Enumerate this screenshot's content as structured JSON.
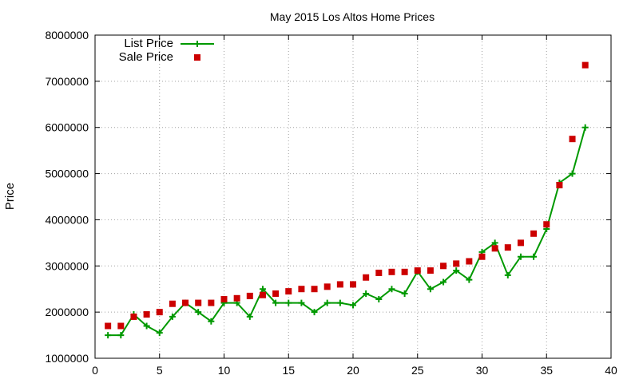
{
  "chart_data": {
    "type": "line",
    "title": "May 2015 Los Altos Home Prices",
    "xlabel": "",
    "ylabel": "Price",
    "xlim": [
      0,
      40
    ],
    "ylim": [
      1000000,
      8000000
    ],
    "xticks": [
      "0",
      "5",
      "10",
      "15",
      "20",
      "25",
      "30",
      "35",
      "40"
    ],
    "yticks": [
      "1000000",
      "2000000",
      "3000000",
      "4000000",
      "5000000",
      "6000000",
      "7000000",
      "8000000"
    ],
    "grid": true,
    "legend_position": "top-left",
    "x": [
      1,
      2,
      3,
      4,
      5,
      6,
      7,
      8,
      9,
      10,
      11,
      12,
      13,
      14,
      15,
      16,
      17,
      18,
      19,
      20,
      21,
      22,
      23,
      24,
      25,
      26,
      27,
      28,
      29,
      30,
      31,
      32,
      33,
      34,
      35,
      36,
      37,
      38
    ],
    "series": [
      {
        "name": "List Price",
        "style": "lines+crosses",
        "color": "#009900",
        "values": [
          1500000,
          1500000,
          1950000,
          1700000,
          1550000,
          1900000,
          2200000,
          2000000,
          1800000,
          2200000,
          2200000,
          1900000,
          2500000,
          2200000,
          2200000,
          2200000,
          2000000,
          2200000,
          2200000,
          2150000,
          2400000,
          2280000,
          2500000,
          2400000,
          2880000,
          2500000,
          2650000,
          2900000,
          2700000,
          3300000,
          3500000,
          2800000,
          3200000,
          3200000,
          3800000,
          4800000,
          5000000,
          6000000
        ]
      },
      {
        "name": "Sale Price",
        "style": "points-squares",
        "color": "#cc0000",
        "values": [
          1700000,
          1700000,
          1900000,
          1950000,
          2000000,
          2180000,
          2200000,
          2200000,
          2200000,
          2280000,
          2300000,
          2350000,
          2370000,
          2400000,
          2450000,
          2500000,
          2500000,
          2550000,
          2600000,
          2600000,
          2750000,
          2850000,
          2870000,
          2870000,
          2900000,
          2900000,
          3000000,
          3050000,
          3100000,
          3200000,
          3380000,
          3400000,
          3500000,
          3700000,
          3900000,
          4750000,
          5750000,
          7350000
        ]
      }
    ]
  }
}
